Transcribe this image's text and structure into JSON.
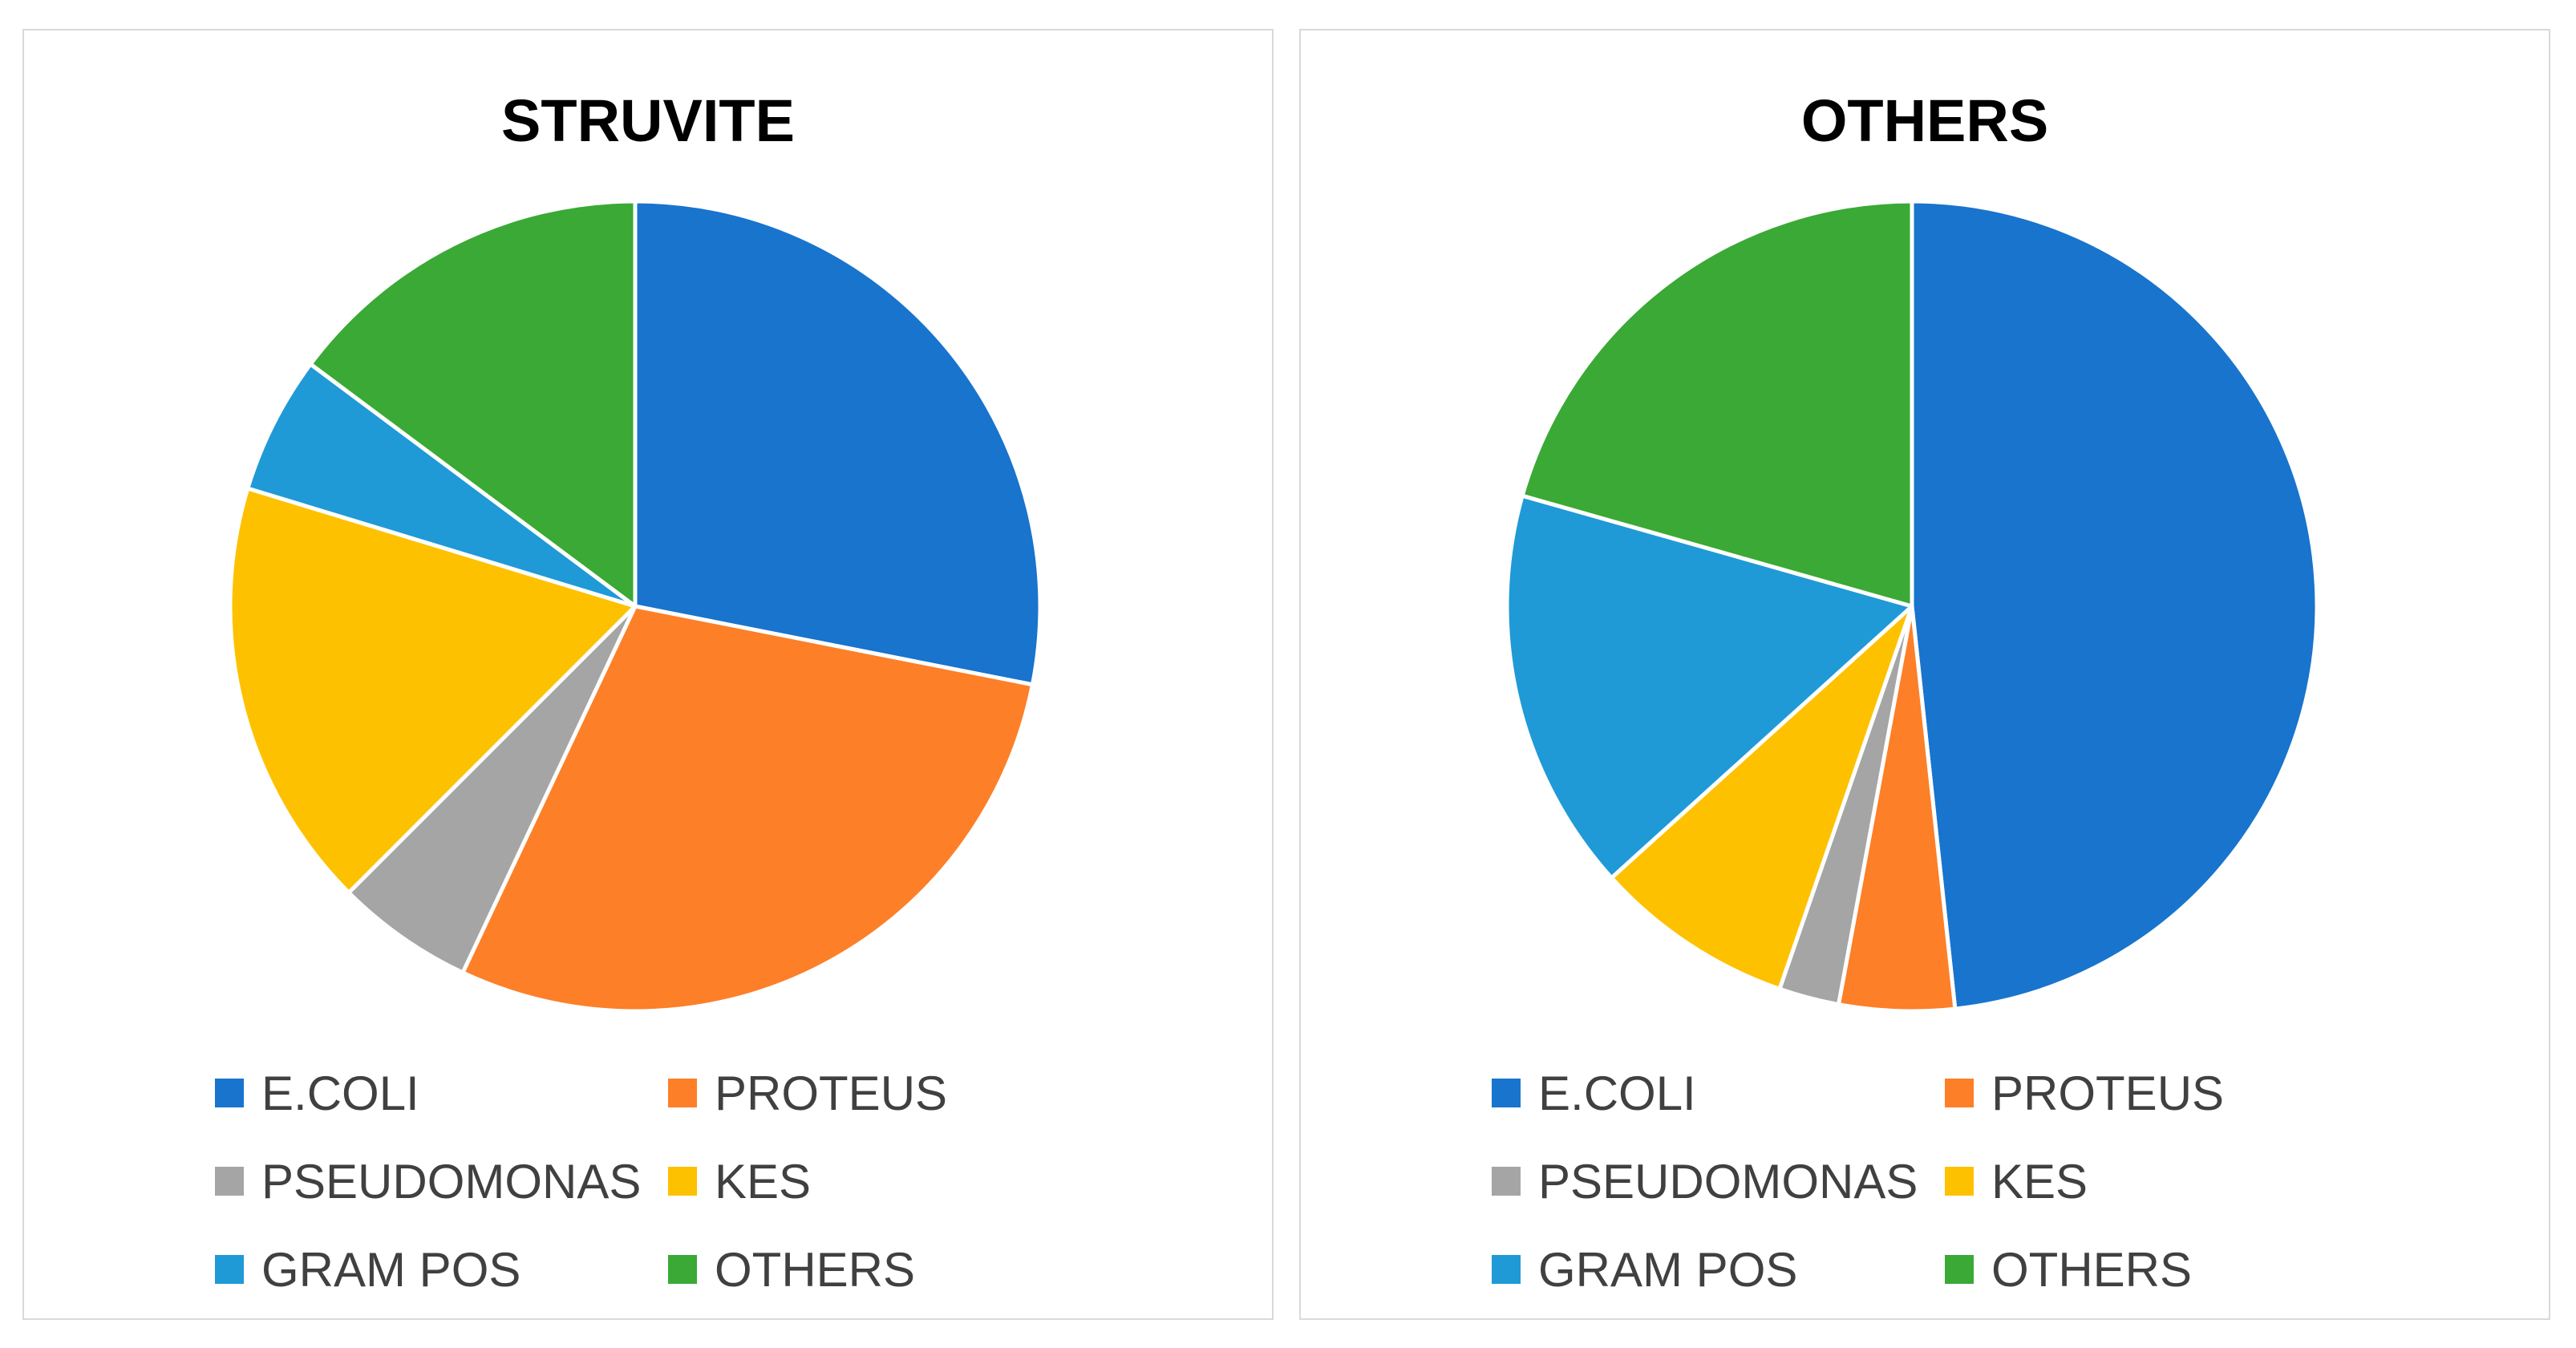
{
  "colors": {
    "E.COLI": "#1874cd",
    "PROTEUS": "#fd7f28",
    "PSEUDOMONAS": "#a5a5a5",
    "KES": "#fec100",
    "GRAM POS": "#1f9ad6",
    "OTHERS": "#3aa935"
  },
  "chart_data": [
    {
      "type": "pie",
      "title": "STRUVITE",
      "categories": [
        "E.COLI",
        "PROTEUS",
        "PSEUDOMONAS",
        "KES",
        "GRAM POS",
        "OTHERS"
      ],
      "values": [
        28.1,
        28.9,
        5.5,
        17.2,
        5.5,
        14.8
      ],
      "start_angle_deg": 0,
      "direction": "clockwise",
      "legend_position": "bottom",
      "legend_columns": 2
    },
    {
      "type": "pie",
      "title": "OTHERS",
      "categories": [
        "E.COLI",
        "PROTEUS",
        "PSEUDOMONAS",
        "KES",
        "GRAM POS",
        "OTHERS"
      ],
      "values": [
        48.3,
        4.6,
        2.4,
        8.0,
        16.1,
        20.6
      ],
      "start_angle_deg": 0,
      "direction": "clockwise",
      "legend_position": "bottom",
      "legend_columns": 2
    }
  ]
}
